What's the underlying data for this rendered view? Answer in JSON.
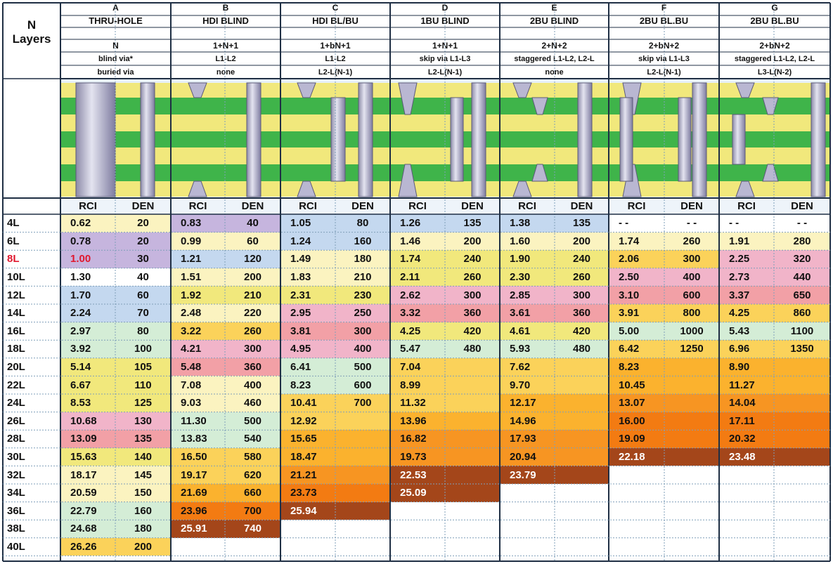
{
  "corner": {
    "n": "N",
    "layers": "Layers"
  },
  "columns": [
    {
      "letter": "A",
      "name": "THRU-HOLE",
      "stack": "N",
      "blind": "blind via*",
      "buried": "buried via"
    },
    {
      "letter": "B",
      "name": "HDI BLIND",
      "stack": "1+N+1",
      "blind": "L1-L2",
      "buried": "none"
    },
    {
      "letter": "C",
      "name": "HDI BL/BU",
      "stack": "1+bN+1",
      "blind": "L1-L2",
      "buried": "L2-L(N-1)"
    },
    {
      "letter": "D",
      "name": "1BU BLIND",
      "stack": "1+N+1",
      "blind": "skip via L1-L3",
      "buried": "L2-L(N-1)"
    },
    {
      "letter": "E",
      "name": "2BU BLIND",
      "stack": "2+N+2",
      "blind": "staggered L1-L2, L2-L",
      "buried": "none"
    },
    {
      "letter": "F",
      "name": "2BU BL.BU",
      "stack": "2+bN+2",
      "blind": "skip via L1-L3",
      "buried": "L2-L(N-1)"
    },
    {
      "letter": "G",
      "name": "2BU BL.BU",
      "stack": "2+bN+2",
      "blind": "staggered L1-L2, L2-L",
      "buried": "L3-L(N-2)"
    }
  ],
  "sub_headers": {
    "rci": "RCI",
    "den": "DEN"
  },
  "rows": [
    {
      "label": "4L",
      "cells": [
        [
          "0.62",
          "20"
        ],
        [
          "0.83",
          "40"
        ],
        [
          "1.05",
          "80"
        ],
        [
          "1.26",
          "135"
        ],
        [
          "1.38",
          "135"
        ],
        [
          "- -",
          "- -"
        ],
        [
          "- -",
          "- -"
        ]
      ]
    },
    {
      "label": "6L",
      "cells": [
        [
          "0.78",
          "20"
        ],
        [
          "0.99",
          "60"
        ],
        [
          "1.24",
          "160"
        ],
        [
          "1.46",
          "200"
        ],
        [
          "1.60",
          "200"
        ],
        [
          "1.74",
          "260"
        ],
        [
          "1.91",
          "280"
        ]
      ]
    },
    {
      "label": "8L",
      "cells": [
        [
          "1.00",
          "30"
        ],
        [
          "1.21",
          "120"
        ],
        [
          "1.49",
          "180"
        ],
        [
          "1.74",
          "240"
        ],
        [
          "1.90",
          "240"
        ],
        [
          "2.06",
          "300"
        ],
        [
          "2.25",
          "320"
        ]
      ]
    },
    {
      "label": "10L",
      "cells": [
        [
          "1.30",
          "40"
        ],
        [
          "1.51",
          "200"
        ],
        [
          "1.83",
          "210"
        ],
        [
          "2.11",
          "260"
        ],
        [
          "2.30",
          "260"
        ],
        [
          "2.50",
          "400"
        ],
        [
          "2.73",
          "440"
        ]
      ]
    },
    {
      "label": "12L",
      "cells": [
        [
          "1.70",
          "60"
        ],
        [
          "1.92",
          "210"
        ],
        [
          "2.31",
          "230"
        ],
        [
          "2.62",
          "300"
        ],
        [
          "2.85",
          "300"
        ],
        [
          "3.10",
          "600"
        ],
        [
          "3.37",
          "650"
        ]
      ]
    },
    {
      "label": "14L",
      "cells": [
        [
          "2.24",
          "70"
        ],
        [
          "2.48",
          "220"
        ],
        [
          "2.95",
          "250"
        ],
        [
          "3.32",
          "360"
        ],
        [
          "3.61",
          "360"
        ],
        [
          "3.91",
          "800"
        ],
        [
          "4.25",
          "860"
        ]
      ]
    },
    {
      "label": "16L",
      "cells": [
        [
          "2.97",
          "80"
        ],
        [
          "3.22",
          "260"
        ],
        [
          "3.81",
          "300"
        ],
        [
          "4.25",
          "420"
        ],
        [
          "4.61",
          "420"
        ],
        [
          "5.00",
          "1000"
        ],
        [
          "5.43",
          "1100"
        ]
      ]
    },
    {
      "label": "18L",
      "cells": [
        [
          "3.92",
          "100"
        ],
        [
          "4.21",
          "300"
        ],
        [
          "4.95",
          "400"
        ],
        [
          "5.47",
          "480"
        ],
        [
          "5.93",
          "480"
        ],
        [
          "6.42",
          "1250"
        ],
        [
          "6.96",
          "1350"
        ]
      ]
    },
    {
      "label": "20L",
      "cells": [
        [
          "5.14",
          "105"
        ],
        [
          "5.48",
          "360"
        ],
        [
          "6.41",
          "500"
        ],
        [
          "7.04",
          ""
        ],
        [
          "7.62",
          ""
        ],
        [
          "8.23",
          ""
        ],
        [
          "8.90",
          ""
        ]
      ]
    },
    {
      "label": "22L",
      "cells": [
        [
          "6.67",
          "110"
        ],
        [
          "7.08",
          "400"
        ],
        [
          "8.23",
          "600"
        ],
        [
          "8.99",
          ""
        ],
        [
          "9.70",
          ""
        ],
        [
          "10.45",
          ""
        ],
        [
          "11.27",
          ""
        ]
      ]
    },
    {
      "label": "24L",
      "cells": [
        [
          "8.53",
          "125"
        ],
        [
          "9.03",
          "460"
        ],
        [
          "10.41",
          "700"
        ],
        [
          "11.32",
          ""
        ],
        [
          "12.17",
          ""
        ],
        [
          "13.07",
          ""
        ],
        [
          "14.04",
          ""
        ]
      ]
    },
    {
      "label": "26L",
      "cells": [
        [
          "10.68",
          "130"
        ],
        [
          "11.30",
          "500"
        ],
        [
          "12.92",
          ""
        ],
        [
          "13.96",
          ""
        ],
        [
          "14.96",
          ""
        ],
        [
          "16.00",
          ""
        ],
        [
          "17.11",
          ""
        ]
      ]
    },
    {
      "label": "28L",
      "cells": [
        [
          "13.09",
          "135"
        ],
        [
          "13.83",
          "540"
        ],
        [
          "15.65",
          ""
        ],
        [
          "16.82",
          ""
        ],
        [
          "17.93",
          ""
        ],
        [
          "19.09",
          ""
        ],
        [
          "20.32",
          ""
        ]
      ]
    },
    {
      "label": "30L",
      "cells": [
        [
          "15.63",
          "140"
        ],
        [
          "16.50",
          "580"
        ],
        [
          "18.47",
          ""
        ],
        [
          "19.73",
          ""
        ],
        [
          "20.94",
          ""
        ],
        [
          "22.18",
          ""
        ],
        [
          "23.48",
          ""
        ]
      ]
    },
    {
      "label": "32L",
      "cells": [
        [
          "18.17",
          "145"
        ],
        [
          "19.17",
          "620"
        ],
        [
          "21.21",
          ""
        ],
        [
          "22.53",
          ""
        ],
        [
          "23.79",
          ""
        ],
        [
          "",
          ""
        ],
        [
          "",
          ""
        ]
      ]
    },
    {
      "label": "34L",
      "cells": [
        [
          "20.59",
          "150"
        ],
        [
          "21.69",
          "660"
        ],
        [
          "23.73",
          ""
        ],
        [
          "25.09",
          ""
        ],
        [
          "",
          ""
        ],
        [
          "",
          ""
        ],
        [
          "",
          ""
        ]
      ]
    },
    {
      "label": "36L",
      "cells": [
        [
          "22.79",
          "160"
        ],
        [
          "23.96",
          "700"
        ],
        [
          "25.94",
          ""
        ],
        [
          "",
          ""
        ],
        [
          "",
          ""
        ],
        [
          "",
          ""
        ],
        [
          "",
          ""
        ]
      ]
    },
    {
      "label": "38L",
      "cells": [
        [
          "24.68",
          "180"
        ],
        [
          "25.91",
          "740"
        ],
        [
          "",
          ""
        ],
        [
          "",
          ""
        ],
        [
          "",
          ""
        ],
        [
          "",
          ""
        ],
        [
          "",
          ""
        ]
      ]
    },
    {
      "label": "40L",
      "cells": [
        [
          "26.26",
          "200"
        ],
        [
          "",
          ""
        ],
        [
          "",
          ""
        ],
        [
          "",
          ""
        ],
        [
          "",
          ""
        ],
        [
          "",
          ""
        ],
        [
          "",
          ""
        ]
      ]
    }
  ],
  "highlight_label": "8L",
  "colors": {
    "green": "#3fb44a",
    "yellow": "#f1e87c",
    "cream": "#fbf3c0",
    "purple": "#c6b5de",
    "blue": "#c4d8ef",
    "pink": "#f1b4c9",
    "rose": "#f2a0a6",
    "mint": "#d4edd6",
    "orange1": "#fbd25a",
    "orange2": "#fbb22e",
    "orange3": "#f79522",
    "orange4": "#f37b12",
    "brown": "#a4461a",
    "grid": "#86a7c2",
    "red": "#e0182e",
    "via": "#b8b6d0"
  },
  "fills": [
    [
      "cream",
      "cream",
      "purple",
      "purple",
      "blue",
      "blue",
      "blue",
      "blue",
      "blue",
      "blue",
      "white",
      "white",
      "white",
      "white"
    ],
    [
      "purple",
      "purple",
      "cream",
      "cream",
      "blue",
      "blue",
      "cream",
      "cream",
      "cream",
      "cream",
      "cream",
      "cream",
      "cream",
      "cream"
    ],
    [
      "purple",
      "purple",
      "blue",
      "blue",
      "cream",
      "cream",
      "yellow",
      "yellow",
      "yellow",
      "yellow",
      "orange1",
      "orange1",
      "pink",
      "pink"
    ],
    [
      "white",
      "white",
      "cream",
      "cream",
      "cream",
      "cream",
      "yellow",
      "yellow",
      "yellow",
      "yellow",
      "pink",
      "pink",
      "pink",
      "pink"
    ],
    [
      "blue",
      "blue",
      "yellow",
      "yellow",
      "yellow",
      "yellow",
      "pink",
      "pink",
      "pink",
      "pink",
      "rose",
      "rose",
      "rose",
      "rose"
    ],
    [
      "blue",
      "blue",
      "cream",
      "cream",
      "pink",
      "pink",
      "rose",
      "rose",
      "rose",
      "rose",
      "orange1",
      "orange1",
      "orange1",
      "orange1"
    ],
    [
      "mint",
      "mint",
      "orange1",
      "orange1",
      "rose",
      "rose",
      "yellow",
      "yellow",
      "yellow",
      "yellow",
      "mint",
      "mint",
      "mint",
      "mint"
    ],
    [
      "mint",
      "mint",
      "pink",
      "pink",
      "pink",
      "pink",
      "mint",
      "mint",
      "mint",
      "mint",
      "orange1",
      "orange1",
      "orange1",
      "orange1"
    ],
    [
      "yellow",
      "yellow",
      "rose",
      "rose",
      "mint",
      "mint",
      "orange1",
      "orange1",
      "orange1",
      "orange1",
      "orange2",
      "orange2",
      "orange2",
      "orange2"
    ],
    [
      "yellow",
      "yellow",
      "cream",
      "cream",
      "mint",
      "mint",
      "orange1",
      "orange1",
      "orange1",
      "orange1",
      "orange2",
      "orange2",
      "orange2",
      "orange2"
    ],
    [
      "yellow",
      "yellow",
      "cream",
      "cream",
      "orange1",
      "orange1",
      "orange1",
      "orange1",
      "orange2",
      "orange2",
      "orange3",
      "orange3",
      "orange3",
      "orange3"
    ],
    [
      "pink",
      "pink",
      "mint",
      "mint",
      "orange1",
      "orange1",
      "orange2",
      "orange2",
      "orange2",
      "orange2",
      "orange4",
      "orange4",
      "orange4",
      "orange4"
    ],
    [
      "rose",
      "rose",
      "mint",
      "mint",
      "orange2",
      "orange2",
      "orange3",
      "orange3",
      "orange3",
      "orange3",
      "orange4",
      "orange4",
      "orange4",
      "orange4"
    ],
    [
      "yellow",
      "yellow",
      "orange1",
      "orange1",
      "orange2",
      "orange2",
      "orange3",
      "orange3",
      "orange3",
      "orange3",
      "brown",
      "brown",
      "brown",
      "brown"
    ],
    [
      "cream",
      "cream",
      "orange1",
      "orange1",
      "orange3",
      "orange3",
      "brown",
      "brown",
      "brown",
      "brown",
      "white",
      "white",
      "white",
      "white"
    ],
    [
      "cream",
      "cream",
      "orange2",
      "orange2",
      "orange4",
      "orange4",
      "brown",
      "brown",
      "white",
      "white",
      "white",
      "white",
      "white",
      "white"
    ],
    [
      "mint",
      "mint",
      "orange4",
      "orange4",
      "brown",
      "brown",
      "white",
      "white",
      "white",
      "white",
      "white",
      "white",
      "white",
      "white"
    ],
    [
      "mint",
      "mint",
      "brown",
      "brown",
      "white",
      "white",
      "white",
      "white",
      "white",
      "white",
      "white",
      "white",
      "white",
      "white"
    ],
    [
      "orange1",
      "orange1",
      "white",
      "white",
      "white",
      "white",
      "white",
      "white",
      "white",
      "white",
      "white",
      "white",
      "white",
      "white"
    ]
  ]
}
